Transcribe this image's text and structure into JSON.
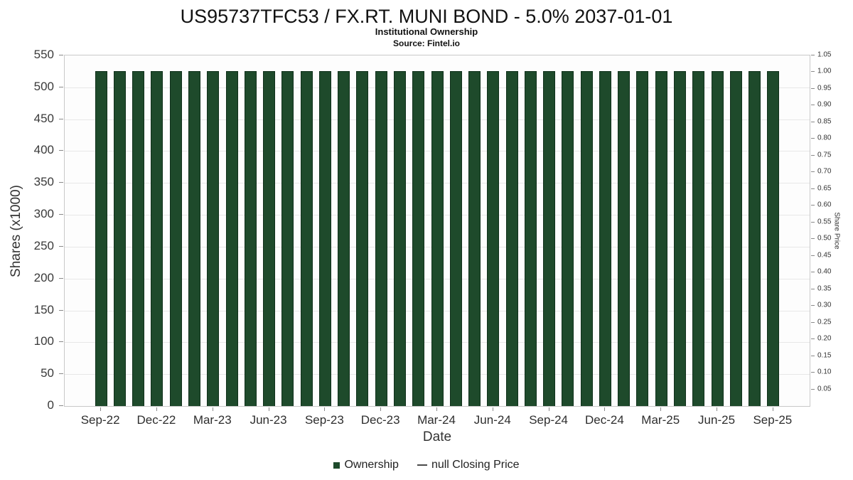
{
  "chart_data": {
    "type": "bar",
    "title": "US95737TFC53 / FX.RT. MUNI BOND - 5.0% 2037-01-01",
    "subtitle": "Institutional Ownership",
    "source": "Source: Fintel.io",
    "xlabel": "Date",
    "ylabel_left": "Shares (x1000)",
    "ylabel_right": "Share Price",
    "ylim_left": [
      0,
      550
    ],
    "ylim_right": [
      0,
      1.05
    ],
    "y_ticks_left": [
      0,
      50,
      100,
      150,
      200,
      250,
      300,
      350,
      400,
      450,
      500,
      550
    ],
    "y_ticks_right": [
      0.05,
      0.1,
      0.15,
      0.2,
      0.25,
      0.3,
      0.35,
      0.4,
      0.45,
      0.5,
      0.55,
      0.6,
      0.65,
      0.7,
      0.75,
      0.8,
      0.85,
      0.9,
      0.95,
      1,
      1.05
    ],
    "x_tick_labels": [
      "Sep-22",
      "Dec-22",
      "Mar-23",
      "Jun-23",
      "Sep-23",
      "Dec-23",
      "Mar-24",
      "Jun-24",
      "Sep-24",
      "Dec-24",
      "Mar-25",
      "Jun-25",
      "Sep-25"
    ],
    "categories": [
      "Sep-22",
      "Oct-22",
      "Nov-22",
      "Dec-22",
      "Jan-23",
      "Feb-23",
      "Mar-23",
      "Apr-23",
      "May-23",
      "Jun-23",
      "Jul-23",
      "Aug-23",
      "Sep-23",
      "Oct-23",
      "Nov-23",
      "Dec-23",
      "Jan-24",
      "Feb-24",
      "Mar-24",
      "Apr-24",
      "May-24",
      "Jun-24",
      "Jul-24",
      "Aug-24",
      "Sep-24",
      "Oct-24",
      "Nov-24",
      "Dec-24",
      "Jan-25",
      "Feb-25",
      "Mar-25",
      "Apr-25",
      "May-25",
      "Jun-25",
      "Jul-25",
      "Aug-25",
      "Sep-25"
    ],
    "series": [
      {
        "name": "Ownership",
        "type": "bar",
        "color": "#1e4a2b",
        "values": [
          525,
          525,
          525,
          525,
          525,
          525,
          525,
          525,
          525,
          525,
          525,
          525,
          525,
          525,
          525,
          525,
          525,
          525,
          525,
          525,
          525,
          525,
          525,
          525,
          525,
          525,
          525,
          525,
          525,
          525,
          525,
          525,
          525,
          525,
          525,
          525,
          525
        ]
      },
      {
        "name": "null Closing Price",
        "type": "line",
        "color": "#4a4a4a",
        "values": []
      }
    ],
    "grid": true,
    "legend_position": "bottom"
  }
}
